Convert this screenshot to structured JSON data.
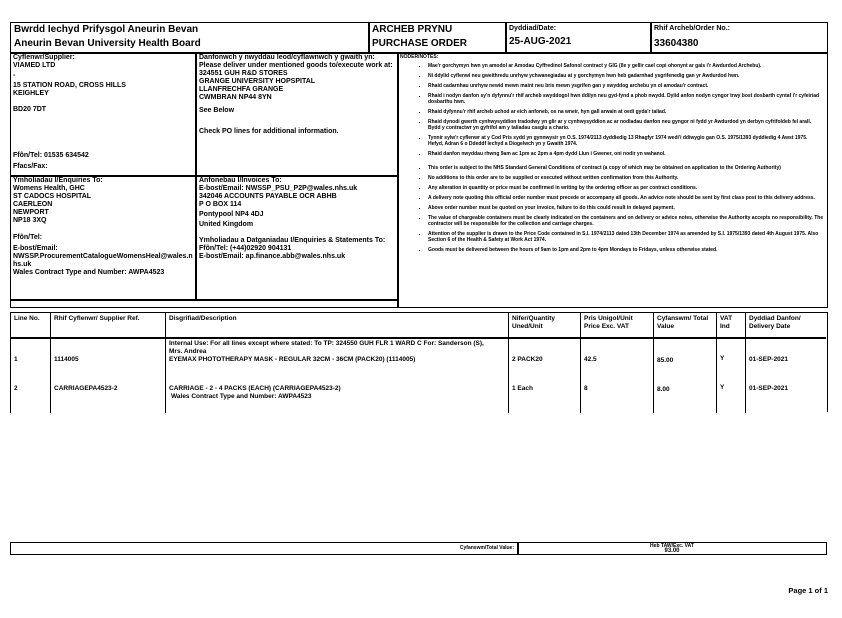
{
  "header": {
    "org_welsh": "Bwrdd Iechyd Prifysgol Aneurin Bevan",
    "org_english": "Aneurin Bevan University Health Board",
    "doc_title_welsh": "ARCHEB PRYNU",
    "doc_title_english": "PURCHASE ORDER",
    "date_label": "Dyddiad/Date:",
    "date_value": "25-AUG-2021",
    "order_no_label": "Rhif Archeb/Order No.:",
    "order_no_value": "33604380"
  },
  "supplier": {
    "label": "Cyflenwr/Supplier:",
    "lines": [
      "VIAMED LTD",
      "-",
      "15 STATION ROAD, CROSS HILLS",
      "KEIGHLEY",
      "",
      "BD20 7DT"
    ],
    "tel": "Ffôn/Tel:  01535 634542",
    "fax": "Ffacs/Fax:"
  },
  "delivery": {
    "label": "Danfonwch y nwyddau leod/cyflawnwch y gwaith yn: Please deliver under mentioned goods to/execute work at:",
    "lines": [
      "324551 GUH R&D STORES",
      "GRANGE UNIVERSITY HOPSPITAL",
      "LLANFRECHFA GRANGE",
      "CWMBRAN NP44 8YN"
    ],
    "see_below": "See Below",
    "check_note": "Check PO lines for additional information."
  },
  "notes": {
    "label": "NODER/NOTES:",
    "welsh": [
      "Mae'r gorchymyn hwn yn amodol ar Amodau Cyffredinol Safonol contract y GIG (lle y gellir cael copi ohonynt ar gais i'r Awdurdod Archebu).",
      "Ni ddylid cyflenwi neu gweithredu unrhyw ychwanegiadau at y gorchymyn hwn heb gadarnhad ysgrifenedig gan yr Awdurdod hwn.",
      "Rhaid cadarnhau unrhyw newid mewn maint neu bris mewn ysgrifen gan y swyddog archebu yn ol amodau'r contract.",
      "Rhaid i nodyn danfon sy'n dyfynnu'r rhif archeb swyddogol hwn ddilyn neu gyd-fynd a phob nwydd. Dylid anfon nodyn cyngor trwy bost dosbarth cyntaf i'r cyfeiriad dosbarthu hwn.",
      "Rhaid dyfynnu'r rhif archeb uchod ar eich anfoneb, os na wneir, hyn gall arwain at oedi gyda'r taliad.",
      "Rhaid dynodi gwerth cynhwysyddion tradodwy yn glir ar y cynhwysyddion ac ar nodiadau danfon neu gyngor ni fydd yr Awdurdod yn derbyn cyfrifoldeb fel arall. Bydd y contractwr yn gyfrifol am y taliadau casglu a chario.",
      "Tynnir sylw'r cyflenwr at y Cod Pris sydd yn gynnwysir yn O.S. 1974/2113 dyddiedig 13 Rhagfyr 1974 wedi'i ddiwygio gan O.S. 1975/1393 dyddiedig 4 Awst 1975. Hefyd, Adran 6 o Ddeddf Iechyd a Diogelwch yn y Gwaith 1974.",
      "Rhaid danfon nwyddau rhwng 9am ac 1pm ac 2pm a 4pm dydd Llun i Gwener, oni nodir yn wahanol."
    ],
    "english": [
      "This order is subject to the NHS Standard General Conditions of contract (a copy of which may be obtained on application to the Ordering Authority)",
      "No additions to this order are to be supplied or executed without written confirmation from this Authority.",
      "Any alteration in quantity or price must be confirmed in writing by the ordering officer as per contract conditions.",
      "A delivery note quoting this official order number must precede or accompany all goods. An advice note should be sent by first class post to this delivery address.",
      "Above order number must be quoted on your invoice, failure to do this could result in delayed payment.",
      "The value of chargeable containers must be clearly indicated on the containers and on delivery or advice notes, otherwise the Authority accepts no responsibility. The contractor will be responsible for the collection and carriage charges.",
      "Attention of the supplier is drawn to the Price Code contained in S.I. 1974/2113 dated 13th December 1974 as amended by S.I. 1975/1393 dated 4th August 1975. Also Section 6 of the Health & Safety at Work Act 1974.",
      "Goods must be delivered between the hours of 9am to 1pm and 2pm to 4pm Mondays to Fridays, unless otherwise stated."
    ]
  },
  "enquiries": {
    "label": "Ymholiadau I/Enquiries To:",
    "lines": [
      "Womens Health, GHC",
      "ST CADOCS HOSPITAL",
      "CAERLEON",
      "NEWPORT",
      "NP18 3XQ"
    ],
    "tel": "Ffôn/Tel:",
    "email_label": "E-bost/Email:",
    "email": "NWSSP.ProcurementCatalogueWomensHeal@wales.nhs.uk",
    "contract": "Wales Contract Type and Number: AWPA4523"
  },
  "invoices": {
    "label": "Anfonebau I/Invoices To:",
    "email": "E-bost/Email: NWSSP_PSU_P2P@wales.nhs.uk",
    "lines": [
      "342046 ACCOUNTS PAYABLE OCR ABHB",
      "P O BOX 114",
      "Pontypool NP4 4DJ",
      "United Kingdom"
    ],
    "statements_label": "Ymholiadau a Datganiadau I/Enquiries & Statements To:",
    "statements_tel": "Ffôn/Tel: (+44)02920 904131",
    "statements_email": "E-bost/Email: ap.finance.abb@wales.nhs.uk"
  },
  "lines_table": {
    "headers": [
      "Line No.",
      "Rhif Cyflenwr/ Supplier Ref.",
      "Disgrifiad/Description",
      "Nifer/Quantity Uned/Unit",
      "Pris Unigol/Unit Price Exc. VAT",
      "Cyfanswm/ Total Value",
      "VAT Ind",
      "Dyddiad Danfon/ Delivery Date"
    ],
    "internal_use": "Internal Use: For all lines except where stated: To TP: 324550 GUH FLR 1 WARD C For: Sanderson (S), Mrs. Andrea",
    "rows": [
      {
        "line": "1",
        "ref": "1114005",
        "description": "EYEMAX PHOTOTHERAPY MASK - REGULAR 32CM - 36CM (PACK20) (1114005)",
        "extra": "",
        "qty": "2 PACK20",
        "price": "42.5",
        "total": "85.00",
        "vat": "Y",
        "date": "01-SEP-2021"
      },
      {
        "line": "2",
        "ref": "CARRIAGEPA4523-2",
        "description": "CARRIAGE - 2 - 4 PACKS (EACH) (CARRIAGEPA4523-2)",
        "extra": "Wales Contract Type and Number: AWPA4523",
        "qty": "1 Each",
        "price": "8",
        "total": "8.00",
        "vat": "Y",
        "date": "01-SEP-2021"
      }
    ]
  },
  "totals": {
    "label": "Cyfanswm/Total Value:",
    "exc_vat_label": "Heb TAW/Exc. VAT",
    "value": "93.00"
  },
  "footer": {
    "page": "Page 1 of 1"
  }
}
